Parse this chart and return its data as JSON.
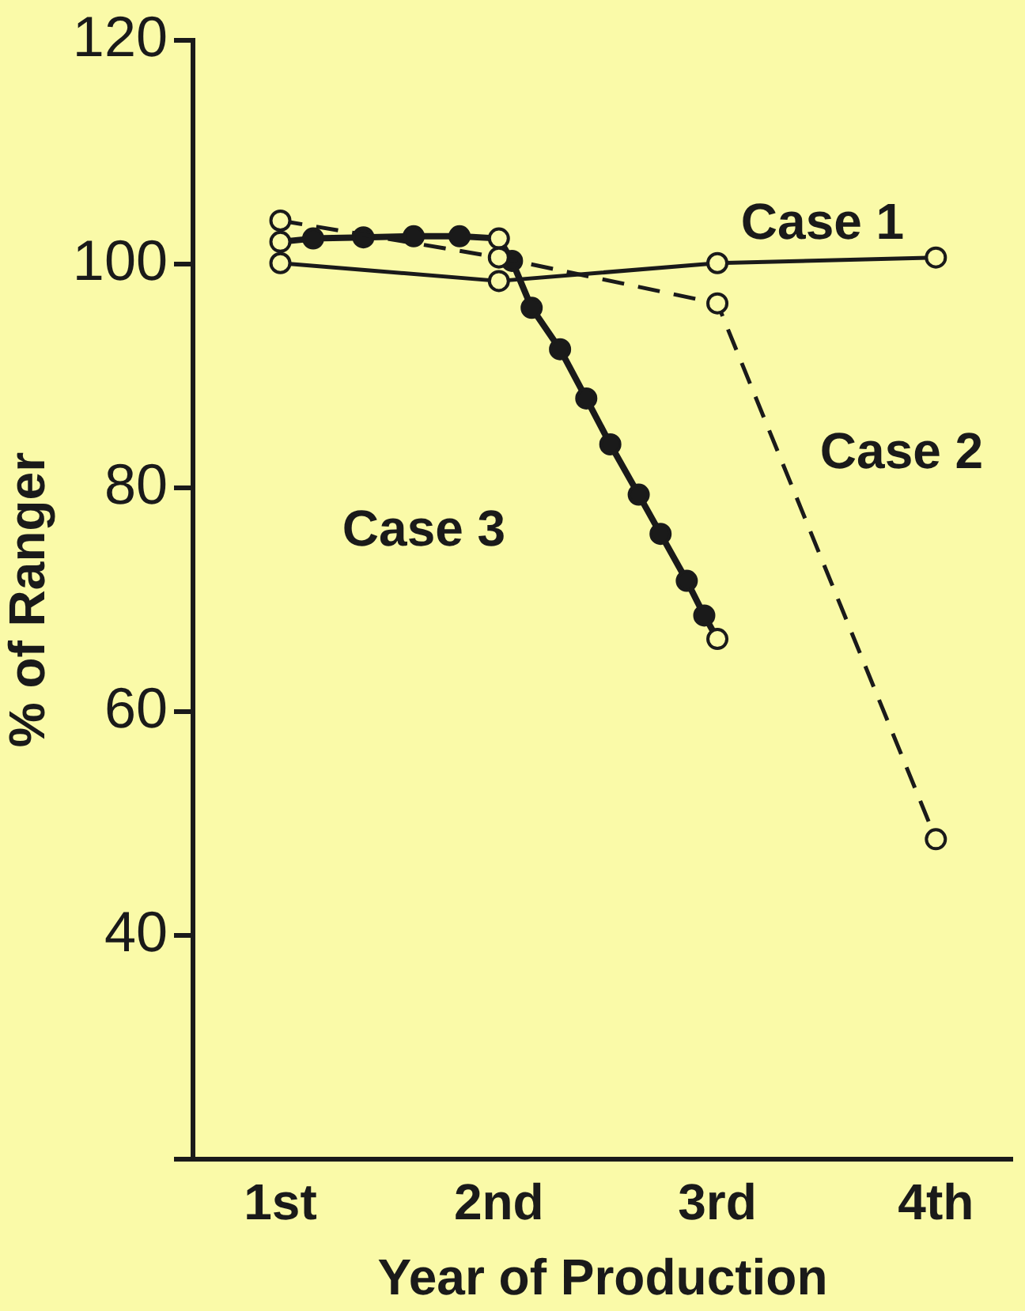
{
  "chart_data": {
    "type": "line",
    "xlabel": "Year of Production",
    "ylabel": "% of Ranger",
    "xlim": [
      0.6,
      4.35
    ],
    "xticks": [
      {
        "value": 1,
        "label": "1st"
      },
      {
        "value": 2,
        "label": "2nd"
      },
      {
        "value": 3,
        "label": "3rd"
      },
      {
        "value": 4,
        "label": "4th"
      }
    ],
    "ylim": [
      20,
      120
    ],
    "yticks": [
      {
        "value": 20,
        "label": null
      },
      40,
      60,
      80,
      100,
      120
    ],
    "grid": false,
    "legend": false,
    "marker": "circle",
    "series": [
      {
        "name": "Case 1",
        "color": "#1a1a1a",
        "line_style": "solid",
        "x": [
          1,
          2,
          3,
          4
        ],
        "values": [
          100.1,
          98.5,
          100.1,
          100.6
        ]
      },
      {
        "name": "Case 2",
        "color": "#1a1a1a",
        "line_style": "dashed",
        "x": [
          1,
          2,
          3,
          4
        ],
        "values": [
          103.9,
          100.6,
          96.5,
          48.6
        ]
      },
      {
        "name": "Case 3",
        "color": "#1a1a1a",
        "line_style": "solid",
        "x": [
          1,
          1.15,
          1.38,
          1.61,
          1.82,
          2,
          2.06,
          2.15,
          2.28,
          2.4,
          2.51,
          2.64,
          2.74,
          2.86,
          2.94,
          3
        ],
        "values": [
          102,
          102.3,
          102.4,
          102.5,
          102.5,
          102.3,
          100.3,
          96.1,
          92.4,
          88,
          83.9,
          79.4,
          75.9,
          71.7,
          68.6,
          66.5
        ],
        "colors": [
          "#fafaa8",
          "#1a1a1a",
          "#1a1a1a",
          "#1a1a1a",
          "#1a1a1a",
          "#fafaa8",
          "#1a1a1a",
          "#1a1a1a",
          "#1a1a1a",
          "#1a1a1a",
          "#1a1a1a",
          "#1a1a1a",
          "#1a1a1a",
          "#1a1a1a",
          "#1a1a1a",
          "#fafaa8"
        ]
      }
    ]
  }
}
